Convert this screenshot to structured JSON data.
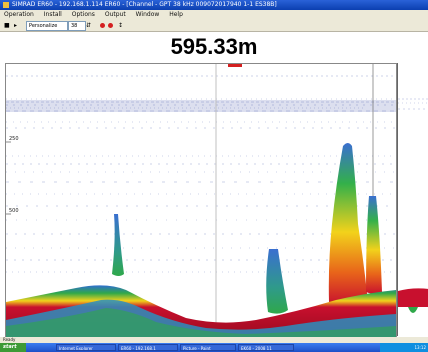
{
  "window": {
    "title": "SIMRAD ER60 - 192.168.1.114 ER60 - [Channel - GPT 38 kHz 009072017940 1-1 ES38B]"
  },
  "menu": [
    "Operation",
    "Install",
    "Options",
    "Output",
    "Window",
    "Help"
  ],
  "toolbar": {
    "mode_select": "Personalize",
    "channel_select": "38"
  },
  "depth_readout": {
    "value": "595.33m"
  },
  "echogram": {
    "depth_labels": [
      "250",
      "500"
    ]
  },
  "statusbar": {
    "ready": "Ready"
  },
  "taskbar": {
    "start_label": "start",
    "tasks": [
      "Internet Explorer",
      "ER60 - 192.168.1",
      "Picture - Paint",
      "EK60 - 2008 11"
    ],
    "clock": "13:12"
  },
  "colors": {
    "title_blue": "#0b3fb0",
    "seabed_red": "#c8102e",
    "echo_green": "#2fa84a",
    "echo_blue": "#2a4db8",
    "echo_yellow": "#f2d21b"
  },
  "icons": [
    "app-icon",
    "red-record-dot",
    "stop-icon",
    "play-icon"
  ]
}
